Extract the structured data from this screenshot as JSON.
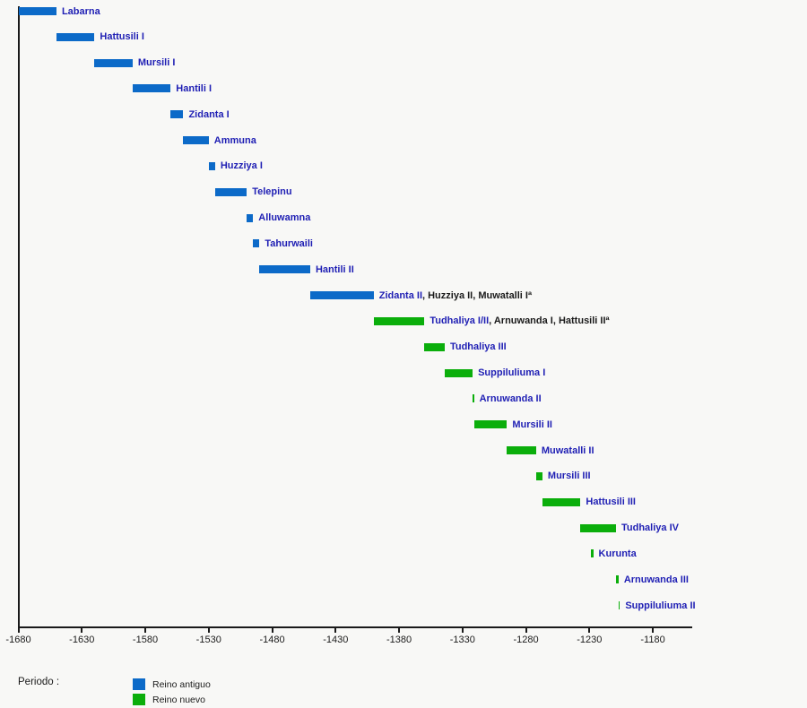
{
  "colors": {
    "background": "#f8f8f6",
    "axis": "#1a1a1a",
    "bar_old_kingdom": "#0c6ac8",
    "bar_new_kingdom": "#0bae0b",
    "king_name_text": "#1f1fb4",
    "extra_names_text": "#1a1a1a"
  },
  "chart_data": {
    "type": "bar",
    "subtype": "horizontal-timeline",
    "title": "",
    "xlabel": "",
    "ylabel": "",
    "grid": false,
    "x_axis": {
      "min": -1680,
      "max": -1149,
      "tick_interval": 50,
      "ticks": [
        {
          "value": -1680,
          "label": "-1680"
        },
        {
          "value": -1630,
          "label": "-1630"
        },
        {
          "value": -1580,
          "label": "-1580"
        },
        {
          "value": -1530,
          "label": "-1530"
        },
        {
          "value": -1480,
          "label": "-1480"
        },
        {
          "value": -1430,
          "label": "-1430"
        },
        {
          "value": -1380,
          "label": "-1380"
        },
        {
          "value": -1330,
          "label": "-1330"
        },
        {
          "value": -1280,
          "label": "-1280"
        },
        {
          "value": -1230,
          "label": "-1230"
        },
        {
          "value": -1180,
          "label": "-1180"
        }
      ]
    },
    "legend": {
      "title": "Periodo :",
      "position": "bottom-left",
      "items": [
        {
          "label": "Reino antiguo",
          "color": "#0c6ac8"
        },
        {
          "label": "Reino nuevo",
          "color": "#0bae0b"
        }
      ]
    },
    "bars": [
      {
        "label": "Labarna",
        "extra": "",
        "start": -1680,
        "end": -1650,
        "period": "Reino antiguo"
      },
      {
        "label": "Hattusili I",
        "extra": "",
        "start": -1650,
        "end": -1620,
        "period": "Reino antiguo"
      },
      {
        "label": "Mursili I",
        "extra": "",
        "start": -1620,
        "end": -1590,
        "period": "Reino antiguo"
      },
      {
        "label": "Hantili I",
        "extra": "",
        "start": -1590,
        "end": -1560,
        "period": "Reino antiguo"
      },
      {
        "label": "Zidanta I",
        "extra": "",
        "start": -1560,
        "end": -1550,
        "period": "Reino antiguo"
      },
      {
        "label": "Ammuna",
        "extra": "",
        "start": -1550,
        "end": -1530,
        "period": "Reino antiguo"
      },
      {
        "label": "Huzziya I",
        "extra": "",
        "start": -1530,
        "end": -1525,
        "period": "Reino antiguo"
      },
      {
        "label": "Telepinu",
        "extra": "",
        "start": -1525,
        "end": -1500,
        "period": "Reino antiguo"
      },
      {
        "label": "Alluwamna",
        "extra": "",
        "start": -1500,
        "end": -1495,
        "period": "Reino antiguo"
      },
      {
        "label": "Tahurwaili",
        "extra": "",
        "start": -1495,
        "end": -1490,
        "period": "Reino antiguo"
      },
      {
        "label": "Hantili II",
        "extra": "",
        "start": -1490,
        "end": -1450,
        "period": "Reino antiguo"
      },
      {
        "label": "Zidanta II",
        "extra": ", Huzziya II, Muwatalli Iª",
        "start": -1450,
        "end": -1400,
        "period": "Reino antiguo"
      },
      {
        "label": "Tudhaliya I/II",
        "extra": ", Arnuwanda I, Hattusili IIª",
        "start": -1400,
        "end": -1360,
        "period": "Reino nuevo"
      },
      {
        "label": "Tudhaliya III",
        "extra": "",
        "start": -1360,
        "end": -1344,
        "period": "Reino nuevo"
      },
      {
        "label": "Suppiluliuma I",
        "extra": "",
        "start": -1344,
        "end": -1322,
        "period": "Reino nuevo"
      },
      {
        "label": "Arnuwanda II",
        "extra": "",
        "start": -1322,
        "end": -1321,
        "period": "Reino nuevo"
      },
      {
        "label": "Mursili II",
        "extra": "",
        "start": -1321,
        "end": -1295,
        "period": "Reino nuevo"
      },
      {
        "label": "Muwatalli II",
        "extra": "",
        "start": -1295,
        "end": -1272,
        "period": "Reino nuevo"
      },
      {
        "label": "Mursili III",
        "extra": "",
        "start": -1272,
        "end": -1267,
        "period": "Reino nuevo"
      },
      {
        "label": "Hattusili III",
        "extra": "",
        "start": -1267,
        "end": -1237,
        "period": "Reino nuevo"
      },
      {
        "label": "Tudhaliya IV",
        "extra": "",
        "start": -1237,
        "end": -1209,
        "period": "Reino nuevo"
      },
      {
        "label": "Kurunta",
        "extra": "",
        "start": -1229,
        "end": -1227,
        "period": "Reino nuevo"
      },
      {
        "label": "Arnuwanda III",
        "extra": "",
        "start": -1209,
        "end": -1207,
        "period": "Reino nuevo"
      },
      {
        "label": "Suppiluliuma II",
        "extra": "",
        "start": -1207,
        "end": -1206,
        "period": "Reino nuevo"
      }
    ]
  }
}
